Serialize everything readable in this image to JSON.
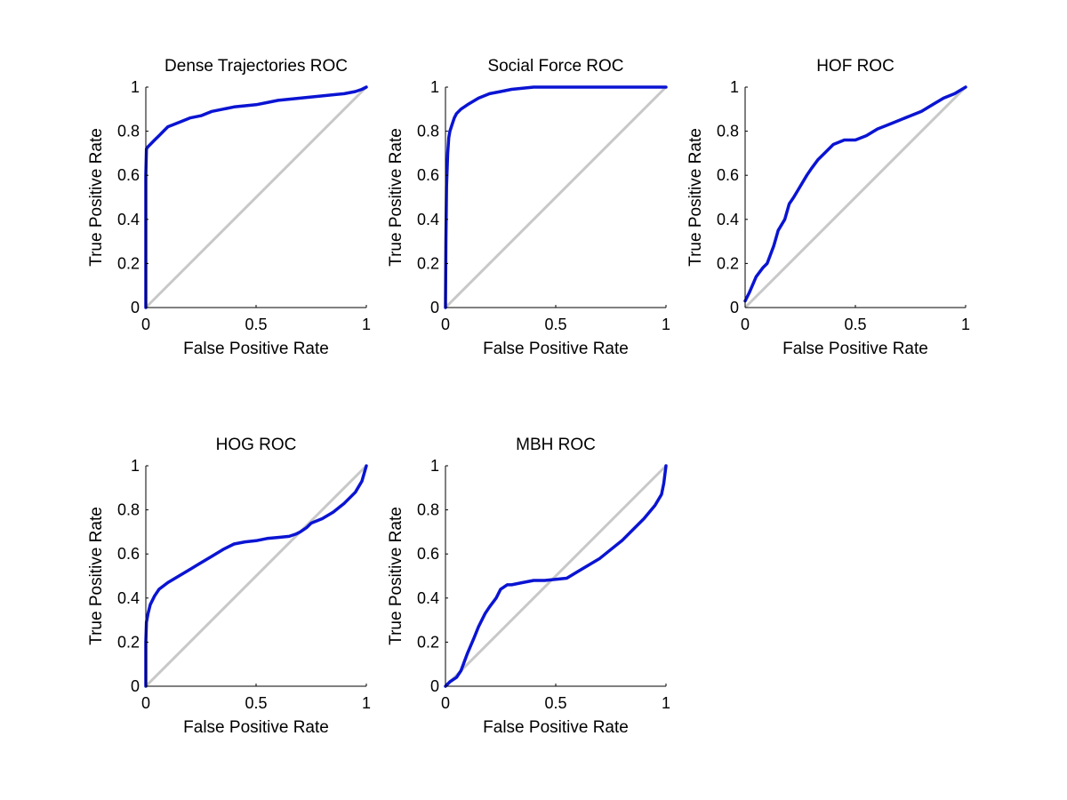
{
  "colors": {
    "roc_curve": "#0a14d2",
    "chance_line": "#c8c8c8",
    "axis": "#000000"
  },
  "chart_data": [
    {
      "type": "line",
      "title": "Dense Trajectories ROC",
      "xlabel": "False Positive Rate",
      "ylabel": "True Positive Rate",
      "xlim": [
        0,
        1
      ],
      "ylim": [
        0,
        1
      ],
      "xticks": [
        "0",
        "0.5",
        "1"
      ],
      "yticks": [
        "0",
        "0.2",
        "0.4",
        "0.6",
        "0.8",
        "1"
      ],
      "grid": false,
      "series": [
        {
          "x": [
            0,
            0,
            0,
            0.003,
            0.01,
            0.02,
            0.04,
            0.06,
            0.08,
            0.1,
            0.15,
            0.2,
            0.25,
            0.3,
            0.35,
            0.4,
            0.5,
            0.55,
            0.6,
            0.7,
            0.8,
            0.9,
            0.95,
            0.98,
            1.0
          ],
          "y": [
            0,
            0.3,
            0.6,
            0.72,
            0.73,
            0.74,
            0.76,
            0.78,
            0.8,
            0.82,
            0.84,
            0.86,
            0.87,
            0.89,
            0.9,
            0.91,
            0.92,
            0.93,
            0.94,
            0.95,
            0.96,
            0.97,
            0.98,
            0.99,
            1.0
          ]
        }
      ],
      "reference_line": {
        "x": [
          0,
          1
        ],
        "y": [
          0,
          1
        ]
      }
    },
    {
      "type": "line",
      "title": "Social Force ROC",
      "xlabel": "False Positive Rate",
      "ylabel": "True Positive Rate",
      "xlim": [
        0,
        1
      ],
      "ylim": [
        0,
        1
      ],
      "xticks": [
        "0",
        "0.5",
        "1"
      ],
      "yticks": [
        "0",
        "0.2",
        "0.4",
        "0.6",
        "0.8",
        "1"
      ],
      "grid": false,
      "series": [
        {
          "x": [
            0,
            0.002,
            0.005,
            0.01,
            0.015,
            0.02,
            0.03,
            0.04,
            0.05,
            0.07,
            0.1,
            0.15,
            0.2,
            0.25,
            0.3,
            0.35,
            0.4,
            0.6,
            0.8,
            1.0
          ],
          "y": [
            0,
            0.3,
            0.55,
            0.7,
            0.77,
            0.8,
            0.83,
            0.86,
            0.88,
            0.9,
            0.92,
            0.95,
            0.97,
            0.98,
            0.99,
            0.995,
            1.0,
            1.0,
            1.0,
            1.0
          ]
        }
      ],
      "reference_line": {
        "x": [
          0,
          1
        ],
        "y": [
          0,
          1
        ]
      }
    },
    {
      "type": "line",
      "title": "HOF ROC",
      "xlabel": "False Positive Rate",
      "ylabel": "True Positive Rate",
      "xlim": [
        0,
        1
      ],
      "ylim": [
        0,
        1
      ],
      "xticks": [
        "0",
        "0.5",
        "1"
      ],
      "yticks": [
        "0",
        "0.2",
        "0.4",
        "0.6",
        "0.8",
        "1"
      ],
      "grid": false,
      "series": [
        {
          "x": [
            0,
            0.02,
            0.05,
            0.08,
            0.1,
            0.13,
            0.15,
            0.18,
            0.2,
            0.22,
            0.25,
            0.28,
            0.3,
            0.33,
            0.36,
            0.4,
            0.45,
            0.5,
            0.55,
            0.6,
            0.65,
            0.7,
            0.75,
            0.8,
            0.85,
            0.9,
            0.95,
            1.0
          ],
          "y": [
            0.03,
            0.07,
            0.14,
            0.18,
            0.2,
            0.28,
            0.35,
            0.4,
            0.47,
            0.5,
            0.55,
            0.6,
            0.63,
            0.67,
            0.7,
            0.74,
            0.76,
            0.76,
            0.78,
            0.81,
            0.83,
            0.85,
            0.87,
            0.89,
            0.92,
            0.95,
            0.97,
            1.0
          ]
        }
      ],
      "reference_line": {
        "x": [
          0,
          1
        ],
        "y": [
          0,
          1
        ]
      }
    },
    {
      "type": "line",
      "title": "HOG ROC",
      "xlabel": "False Positive Rate",
      "ylabel": "True Positive Rate",
      "xlim": [
        0,
        1
      ],
      "ylim": [
        0,
        1
      ],
      "xticks": [
        "0",
        "0.5",
        "1"
      ],
      "yticks": [
        "0",
        "0.2",
        "0.4",
        "0.6",
        "0.8",
        "1"
      ],
      "grid": false,
      "series": [
        {
          "x": [
            0,
            0,
            0.003,
            0.01,
            0.02,
            0.04,
            0.06,
            0.1,
            0.15,
            0.2,
            0.25,
            0.3,
            0.35,
            0.4,
            0.45,
            0.5,
            0.55,
            0.6,
            0.65,
            0.68,
            0.7,
            0.73,
            0.75,
            0.8,
            0.85,
            0.9,
            0.95,
            0.98,
            1.0
          ],
          "y": [
            0,
            0.2,
            0.29,
            0.33,
            0.37,
            0.41,
            0.44,
            0.47,
            0.5,
            0.53,
            0.56,
            0.59,
            0.62,
            0.645,
            0.655,
            0.66,
            0.67,
            0.675,
            0.68,
            0.69,
            0.7,
            0.72,
            0.74,
            0.76,
            0.79,
            0.83,
            0.88,
            0.93,
            1.0
          ]
        }
      ],
      "reference_line": {
        "x": [
          0,
          1
        ],
        "y": [
          0,
          1
        ]
      }
    },
    {
      "type": "line",
      "title": "MBH ROC",
      "xlabel": "False Positive Rate",
      "ylabel": "True Positive Rate",
      "xlim": [
        0,
        1
      ],
      "ylim": [
        0,
        1
      ],
      "xticks": [
        "0",
        "0.5",
        "1"
      ],
      "yticks": [
        "0",
        "0.2",
        "0.4",
        "0.6",
        "0.8",
        "1"
      ],
      "grid": false,
      "series": [
        {
          "x": [
            0,
            0.02,
            0.05,
            0.07,
            0.1,
            0.13,
            0.15,
            0.18,
            0.2,
            0.23,
            0.25,
            0.28,
            0.3,
            0.35,
            0.4,
            0.45,
            0.5,
            0.55,
            0.6,
            0.65,
            0.7,
            0.75,
            0.8,
            0.85,
            0.9,
            0.95,
            0.98,
            0.99,
            1.0
          ],
          "y": [
            0,
            0.02,
            0.04,
            0.07,
            0.15,
            0.22,
            0.27,
            0.33,
            0.36,
            0.4,
            0.44,
            0.46,
            0.46,
            0.47,
            0.48,
            0.48,
            0.485,
            0.49,
            0.52,
            0.55,
            0.58,
            0.62,
            0.66,
            0.71,
            0.76,
            0.82,
            0.87,
            0.92,
            1.0
          ]
        }
      ],
      "reference_line": {
        "x": [
          0,
          1
        ],
        "y": [
          0,
          1
        ]
      }
    }
  ]
}
